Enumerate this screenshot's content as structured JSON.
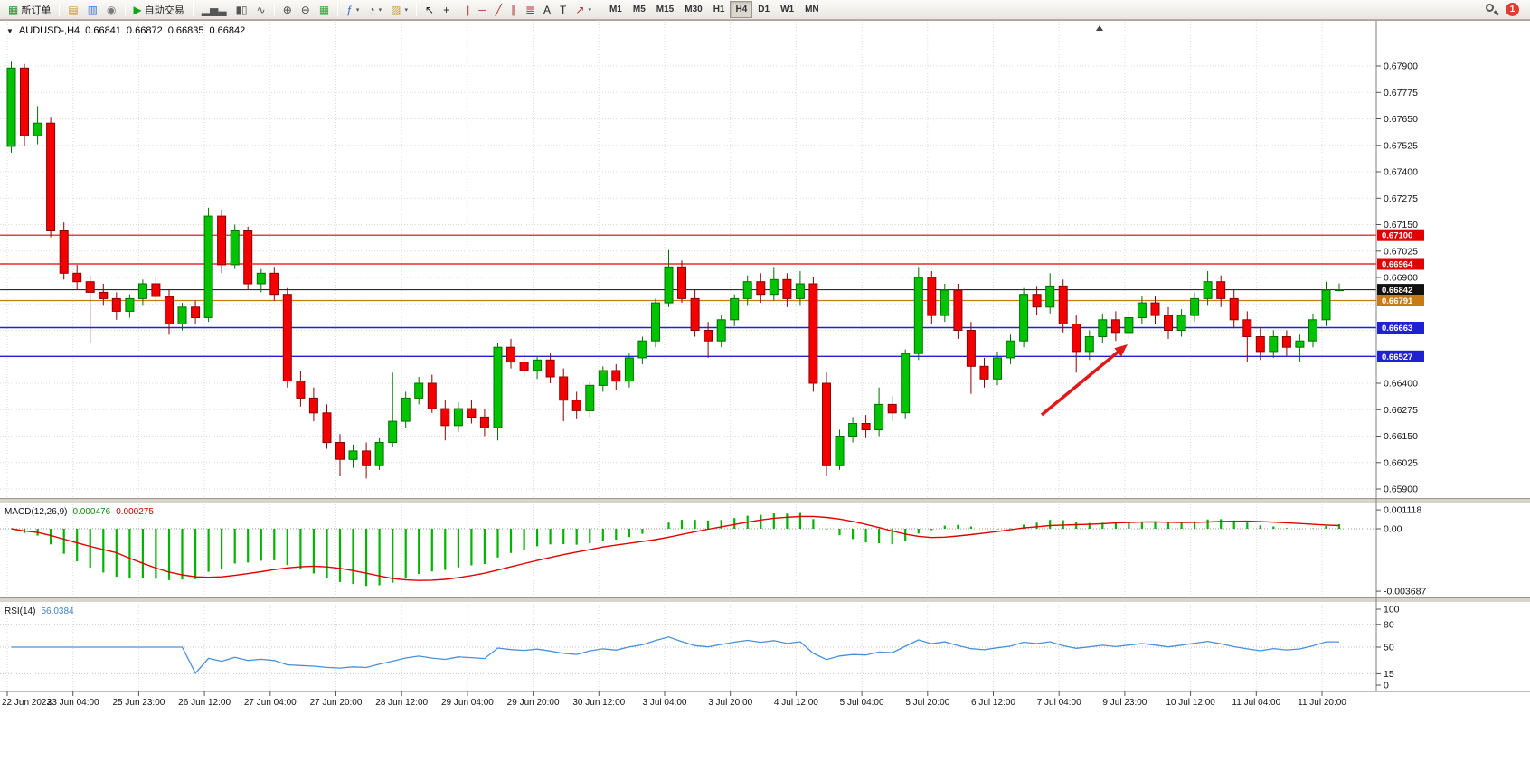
{
  "toolbar": {
    "groups": [
      {
        "name": "orders",
        "buttons": [
          {
            "name": "new-order-button",
            "icon": "new-order-icon",
            "glyph": "▦",
            "color": "#2e8b2e",
            "label": "新订单"
          }
        ]
      },
      {
        "name": "panels",
        "buttons": [
          {
            "name": "charts-button",
            "icon": "charts-icon",
            "glyph": "▤",
            "color": "#c8963c"
          },
          {
            "name": "data-window-button",
            "icon": "data-window-icon",
            "glyph": "▥",
            "color": "#3c6ec8"
          },
          {
            "name": "navigator-button",
            "icon": "navigator-icon",
            "glyph": "◉",
            "color": "#7a7a7a"
          }
        ]
      },
      {
        "name": "autotrading",
        "buttons": [
          {
            "name": "autotrading-button",
            "icon": "autotrading-play-icon",
            "glyph": "▶",
            "color": "#17a317",
            "label": "自动交易"
          }
        ]
      },
      {
        "name": "chart-type",
        "buttons": [
          {
            "name": "bar-chart-button",
            "icon": "bar-chart-icon",
            "glyph": "▂▅▃",
            "color": "#555555"
          },
          {
            "name": "candlestick-chart-button",
            "icon": "candlestick-icon",
            "glyph": "▮▯",
            "color": "#555555"
          },
          {
            "name": "line-chart-button",
            "icon": "line-chart-icon",
            "glyph": "∿",
            "color": "#555555"
          }
        ]
      },
      {
        "name": "zoom",
        "buttons": [
          {
            "name": "zoom-in-button",
            "icon": "zoom-in-icon",
            "glyph": "⊕",
            "color": "#444444"
          },
          {
            "name": "zoom-out-button",
            "icon": "zoom-out-icon",
            "glyph": "⊖",
            "color": "#444444"
          },
          {
            "name": "tile-windows-button",
            "icon": "tile-windows-icon",
            "glyph": "▦",
            "color": "#3c9e3c"
          }
        ]
      },
      {
        "name": "chart-tools",
        "buttons": [
          {
            "name": "indicators-button",
            "icon": "indicators-icon",
            "glyph": "ƒ",
            "color": "#3c6ec8",
            "dropdown": true
          },
          {
            "name": "periods-button",
            "icon": "periods-icon",
            "glyph": "◔",
            "color": "#555555",
            "dropdown": true
          },
          {
            "name": "templates-button",
            "icon": "templates-icon",
            "glyph": "▨",
            "color": "#c8963c",
            "dropdown": true
          }
        ]
      },
      {
        "name": "cursor",
        "buttons": [
          {
            "name": "cursor-button",
            "icon": "cursor-icon",
            "glyph": "↖",
            "color": "#222222"
          },
          {
            "name": "crosshair-button",
            "icon": "crosshair-icon",
            "glyph": "+",
            "color": "#222222"
          }
        ]
      },
      {
        "name": "drawing",
        "buttons": [
          {
            "name": "vertical-line-button",
            "icon": "vertical-line-icon",
            "glyph": "|",
            "color": "#b03030"
          },
          {
            "name": "horizontal-line-button",
            "icon": "horizontal-line-icon",
            "glyph": "─",
            "color": "#b03030"
          },
          {
            "name": "trendline-button",
            "icon": "trendline-icon",
            "glyph": "╱",
            "color": "#b03030"
          },
          {
            "name": "channel-button",
            "icon": "channel-icon",
            "glyph": "∥",
            "color": "#b03030"
          },
          {
            "name": "fibonacci-button",
            "icon": "fibonacci-icon",
            "glyph": "≣",
            "color": "#b03030"
          },
          {
            "name": "text-button",
            "icon": "text-icon",
            "glyph": "A",
            "color": "#222222"
          },
          {
            "name": "text-label-button",
            "icon": "text-label-icon",
            "glyph": "T",
            "color": "#222222"
          },
          {
            "name": "arrows-button",
            "icon": "arrows-icon",
            "glyph": "↗",
            "color": "#b03030",
            "dropdown": true
          }
        ]
      },
      {
        "name": "timeframes",
        "buttons": [
          {
            "name": "timeframe-m1-button",
            "label": "M1"
          },
          {
            "name": "timeframe-m5-button",
            "label": "M5"
          },
          {
            "name": "timeframe-m15-button",
            "label": "M15"
          },
          {
            "name": "timeframe-m30-button",
            "label": "M30"
          },
          {
            "name": "timeframe-h1-button",
            "label": "H1"
          },
          {
            "name": "timeframe-h4-button",
            "label": "H4",
            "active": true
          },
          {
            "name": "timeframe-d1-button",
            "label": "D1"
          },
          {
            "name": "timeframe-w1-button",
            "label": "W1"
          },
          {
            "name": "timeframe-mn-button",
            "label": "MN"
          }
        ]
      }
    ],
    "right": {
      "notification_count": "1"
    }
  },
  "chart_data": {
    "type": "candlestick",
    "title": {
      "symbol_period": "AUDUSD-,H4",
      "open": "0.66841",
      "high": "0.66872",
      "low": "0.66835",
      "close": "0.66842"
    },
    "colors": {
      "background": "#ffffff",
      "grid": "#dcdcdc",
      "bull": "#00c400",
      "bull_border": "#007000",
      "bear": "#f40000",
      "bear_border": "#8b0000",
      "macd_hist": "#00b400",
      "macd_signal": "#e00000",
      "rsi_line": "#4a90d9"
    },
    "price_scale": {
      "min": 0.659,
      "max": 0.679,
      "step": 0.00125,
      "visible_labels": [
        "0.67900",
        "0.67775",
        "0.67650",
        "0.67525",
        "0.67400",
        "0.67275",
        "0.67150",
        "0.67025",
        "0.66900",
        "0.66400",
        "0.66275",
        "0.66150",
        "0.66025",
        "0.65900"
      ]
    },
    "hlines": [
      {
        "name": "resistance-line-1",
        "price": 0.671,
        "label": "0.67100",
        "color": "#e00000",
        "width": 1.2
      },
      {
        "name": "resistance-line-2",
        "price": 0.66964,
        "label": "0.66964",
        "color": "#e00000",
        "width": 1.2
      },
      {
        "name": "current-price-line",
        "price": 0.66842,
        "label": "0.66842",
        "color": "#111111",
        "width": 1
      },
      {
        "name": "pivot-line",
        "price": 0.66791,
        "label": "0.66791",
        "color": "#c87a14",
        "width": 1.3
      },
      {
        "name": "support-line-1",
        "price": 0.66663,
        "label": "0.66663",
        "color": "#2121d4",
        "width": 1.4
      },
      {
        "name": "support-line-2",
        "price": 0.66527,
        "label": "0.66527",
        "color": "#2121d4",
        "width": 1.4
      }
    ],
    "time_labels": [
      "22 Jun 2023",
      "23 Jun 04:00",
      "25 Jun 23:00",
      "26 Jun 12:00",
      "27 Jun 04:00",
      "27 Jun 20:00",
      "28 Jun 12:00",
      "29 Jun 04:00",
      "29 Jun 20:00",
      "30 Jun 12:00",
      "3 Jul 04:00",
      "3 Jul 20:00",
      "4 Jul 12:00",
      "5 Jul 04:00",
      "5 Jul 20:00",
      "6 Jul 12:00",
      "7 Jul 04:00",
      "9 Jul 23:00",
      "10 Jul 12:00",
      "11 Jul 04:00",
      "11 Jul 20:00"
    ],
    "candles": [
      [
        0.6752,
        0.6792,
        0.6749,
        0.6789
      ],
      [
        0.6789,
        0.6791,
        0.6752,
        0.6757
      ],
      [
        0.6757,
        0.6771,
        0.6753,
        0.6763
      ],
      [
        0.6763,
        0.6766,
        0.6709,
        0.6712
      ],
      [
        0.6712,
        0.6716,
        0.6689,
        0.6692
      ],
      [
        0.6692,
        0.6696,
        0.6684,
        0.6688
      ],
      [
        0.6688,
        0.6691,
        0.6659,
        0.6683
      ],
      [
        0.6683,
        0.6687,
        0.6677,
        0.668
      ],
      [
        0.668,
        0.6683,
        0.667,
        0.6674
      ],
      [
        0.6674,
        0.6682,
        0.6671,
        0.668
      ],
      [
        0.668,
        0.6689,
        0.6677,
        0.6687
      ],
      [
        0.6687,
        0.669,
        0.6678,
        0.6681
      ],
      [
        0.6681,
        0.6684,
        0.6663,
        0.6668
      ],
      [
        0.6668,
        0.6678,
        0.6665,
        0.6676
      ],
      [
        0.6676,
        0.6679,
        0.6668,
        0.6671
      ],
      [
        0.6671,
        0.6723,
        0.6669,
        0.6719
      ],
      [
        0.6719,
        0.6722,
        0.6692,
        0.6696
      ],
      [
        0.6696,
        0.6715,
        0.6694,
        0.6712
      ],
      [
        0.6712,
        0.6714,
        0.6684,
        0.6687
      ],
      [
        0.6687,
        0.6694,
        0.6683,
        0.6692
      ],
      [
        0.6692,
        0.6695,
        0.6679,
        0.6682
      ],
      [
        0.6682,
        0.6685,
        0.6638,
        0.6641
      ],
      [
        0.6641,
        0.6646,
        0.6629,
        0.6633
      ],
      [
        0.6633,
        0.6638,
        0.6622,
        0.6626
      ],
      [
        0.6626,
        0.663,
        0.6609,
        0.6612
      ],
      [
        0.6612,
        0.6616,
        0.6596,
        0.6604
      ],
      [
        0.6604,
        0.6611,
        0.66,
        0.6608
      ],
      [
        0.6608,
        0.6612,
        0.6595,
        0.6601
      ],
      [
        0.6601,
        0.6614,
        0.6599,
        0.6612
      ],
      [
        0.6612,
        0.6645,
        0.661,
        0.6622
      ],
      [
        0.6622,
        0.6636,
        0.6619,
        0.6633
      ],
      [
        0.6633,
        0.6643,
        0.663,
        0.664
      ],
      [
        0.664,
        0.6644,
        0.6626,
        0.6628
      ],
      [
        0.6628,
        0.6632,
        0.6613,
        0.662
      ],
      [
        0.662,
        0.6631,
        0.6617,
        0.6628
      ],
      [
        0.6628,
        0.6632,
        0.6621,
        0.6624
      ],
      [
        0.6624,
        0.6628,
        0.6615,
        0.6619
      ],
      [
        0.6619,
        0.6659,
        0.6613,
        0.6657
      ],
      [
        0.6657,
        0.6661,
        0.6647,
        0.665
      ],
      [
        0.665,
        0.6654,
        0.6643,
        0.6646
      ],
      [
        0.6646,
        0.6653,
        0.6642,
        0.6651
      ],
      [
        0.6651,
        0.6654,
        0.664,
        0.6643
      ],
      [
        0.6643,
        0.6647,
        0.6622,
        0.6632
      ],
      [
        0.6632,
        0.6636,
        0.6623,
        0.6627
      ],
      [
        0.6627,
        0.6641,
        0.6624,
        0.6639
      ],
      [
        0.6639,
        0.6648,
        0.6636,
        0.6646
      ],
      [
        0.6646,
        0.6649,
        0.6637,
        0.6641
      ],
      [
        0.6641,
        0.6654,
        0.6638,
        0.6652
      ],
      [
        0.6652,
        0.6662,
        0.6649,
        0.666
      ],
      [
        0.666,
        0.668,
        0.6657,
        0.6678
      ],
      [
        0.6678,
        0.6703,
        0.6676,
        0.6695
      ],
      [
        0.6695,
        0.6698,
        0.6678,
        0.668
      ],
      [
        0.668,
        0.6684,
        0.6662,
        0.6665
      ],
      [
        0.6665,
        0.6669,
        0.6652,
        0.666
      ],
      [
        0.666,
        0.6672,
        0.6657,
        0.667
      ],
      [
        0.667,
        0.6682,
        0.6667,
        0.668
      ],
      [
        0.668,
        0.6691,
        0.6677,
        0.6688
      ],
      [
        0.6688,
        0.6692,
        0.6678,
        0.6682
      ],
      [
        0.6682,
        0.6695,
        0.6679,
        0.6689
      ],
      [
        0.6689,
        0.6692,
        0.6676,
        0.668
      ],
      [
        0.668,
        0.6693,
        0.6677,
        0.6687
      ],
      [
        0.6687,
        0.669,
        0.6636,
        0.664
      ],
      [
        0.664,
        0.6645,
        0.6596,
        0.6601
      ],
      [
        0.6601,
        0.6618,
        0.6599,
        0.6615
      ],
      [
        0.6615,
        0.6624,
        0.6612,
        0.6621
      ],
      [
        0.6621,
        0.6625,
        0.6614,
        0.6618
      ],
      [
        0.6618,
        0.6638,
        0.6615,
        0.663
      ],
      [
        0.663,
        0.6634,
        0.6622,
        0.6626
      ],
      [
        0.6626,
        0.6656,
        0.6623,
        0.6654
      ],
      [
        0.6654,
        0.6695,
        0.6651,
        0.669
      ],
      [
        0.669,
        0.6693,
        0.6668,
        0.6672
      ],
      [
        0.6672,
        0.6687,
        0.6669,
        0.6684
      ],
      [
        0.6684,
        0.6687,
        0.6661,
        0.6665
      ],
      [
        0.6665,
        0.6669,
        0.6635,
        0.6648
      ],
      [
        0.6648,
        0.6652,
        0.6638,
        0.6642
      ],
      [
        0.6642,
        0.6655,
        0.6639,
        0.6652
      ],
      [
        0.6652,
        0.6663,
        0.6649,
        0.666
      ],
      [
        0.666,
        0.6685,
        0.6657,
        0.6682
      ],
      [
        0.6682,
        0.6686,
        0.6672,
        0.6676
      ],
      [
        0.6676,
        0.6692,
        0.6673,
        0.6686
      ],
      [
        0.6686,
        0.6689,
        0.6664,
        0.6668
      ],
      [
        0.6668,
        0.6672,
        0.6645,
        0.6655
      ],
      [
        0.6655,
        0.6665,
        0.6651,
        0.6662
      ],
      [
        0.6662,
        0.6673,
        0.6659,
        0.667
      ],
      [
        0.667,
        0.6674,
        0.666,
        0.6664
      ],
      [
        0.6664,
        0.6674,
        0.6661,
        0.6671
      ],
      [
        0.6671,
        0.6681,
        0.6668,
        0.6678
      ],
      [
        0.6678,
        0.6681,
        0.6668,
        0.6672
      ],
      [
        0.6672,
        0.6676,
        0.6661,
        0.6665
      ],
      [
        0.6665,
        0.6675,
        0.6662,
        0.6672
      ],
      [
        0.6672,
        0.6683,
        0.6669,
        0.668
      ],
      [
        0.668,
        0.6693,
        0.6677,
        0.6688
      ],
      [
        0.6688,
        0.6691,
        0.6676,
        0.668
      ],
      [
        0.668,
        0.6684,
        0.6666,
        0.667
      ],
      [
        0.667,
        0.6674,
        0.665,
        0.6662
      ],
      [
        0.6662,
        0.6666,
        0.6651,
        0.6655
      ],
      [
        0.6655,
        0.6665,
        0.6652,
        0.6662
      ],
      [
        0.6662,
        0.6665,
        0.6653,
        0.6657
      ],
      [
        0.6657,
        0.6663,
        0.665,
        0.666
      ],
      [
        0.666,
        0.6673,
        0.6657,
        0.667
      ],
      [
        0.667,
        0.6688,
        0.6667,
        0.6684
      ],
      [
        0.66841,
        0.66872,
        0.66835,
        0.66842
      ]
    ],
    "macd": {
      "label": "MACD(12,26,9)",
      "value_main": "0.000476",
      "value_signal": "0.000275",
      "scale": [
        "0.001118",
        "0.00",
        "-0.003687"
      ],
      "params": {
        "fast": 12,
        "slow": 26,
        "signal": 9
      }
    },
    "rsi": {
      "label": "RSI(14)",
      "value": "56.0384",
      "period": 14,
      "levels": [
        100,
        80,
        50,
        15,
        0
      ],
      "dotted_levels": [
        80,
        50,
        15
      ]
    },
    "arrow": {
      "color": "#e01818"
    }
  }
}
